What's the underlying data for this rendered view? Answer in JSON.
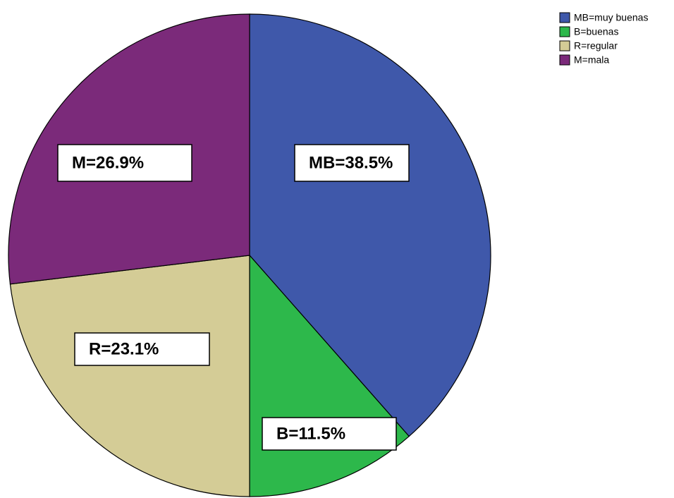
{
  "chart_data": {
    "type": "pie",
    "categories": [
      "MB=muy buenas",
      "B=buenas",
      "R=regular",
      "M=mala"
    ],
    "values": [
      38.5,
      11.5,
      23.1,
      26.9
    ],
    "value_labels": [
      "MB=38.5%",
      "B=11.5%",
      "R=23.1%",
      "M=26.9%"
    ],
    "colors": [
      "#3f58aa",
      "#2db84b",
      "#d4cc96",
      "#7b2a7a"
    ],
    "legend": "top-right"
  }
}
